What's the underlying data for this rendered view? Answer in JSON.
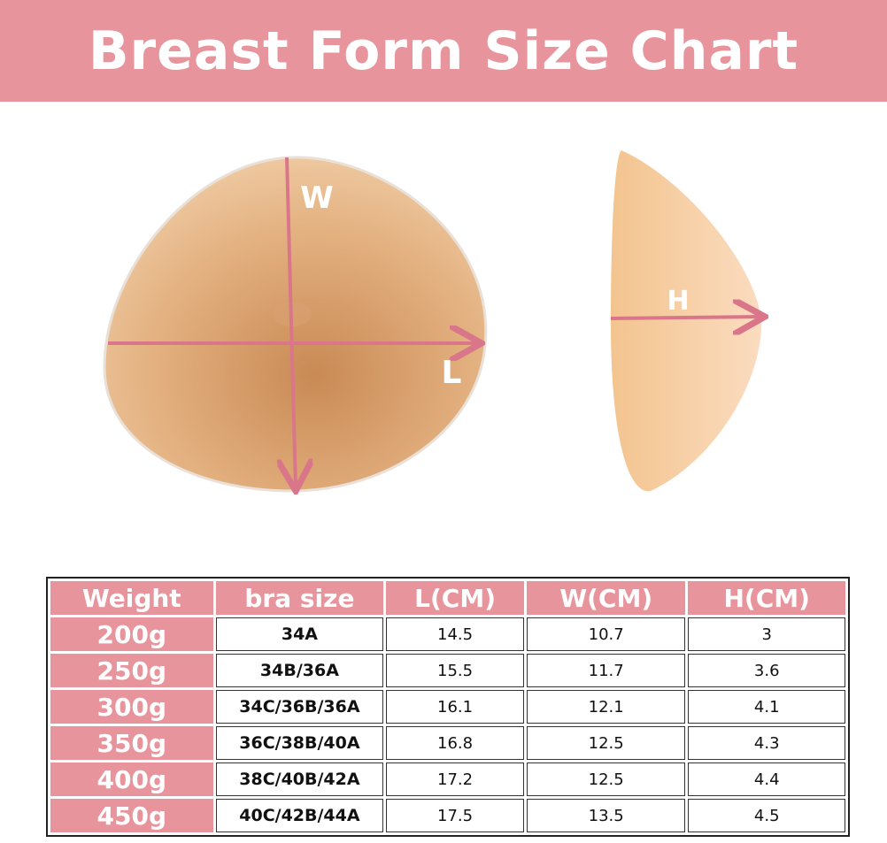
{
  "header": {
    "title": "Breast Form Size Chart"
  },
  "labels": {
    "front_width": "W",
    "front_length": "L",
    "side_height": "H"
  },
  "table": {
    "columns": [
      "Weight",
      "bra size",
      "L(CM)",
      "W(CM)",
      "H(CM)"
    ],
    "rows": [
      [
        "200g",
        "34A",
        "14.5",
        "10.7",
        "3"
      ],
      [
        "250g",
        "34B/36A",
        "15.5",
        "11.7",
        "3.6"
      ],
      [
        "300g",
        "34C/36B/36A",
        "16.1",
        "12.1",
        "4.1"
      ],
      [
        "350g",
        "36C/38B/40A",
        "16.8",
        "12.5",
        "4.3"
      ],
      [
        "400g",
        "38C/40B/42A",
        "17.2",
        "12.5",
        "4.4"
      ],
      [
        "450g",
        "40C/42B/44A",
        "17.5",
        "13.5",
        "4.5"
      ]
    ]
  }
}
